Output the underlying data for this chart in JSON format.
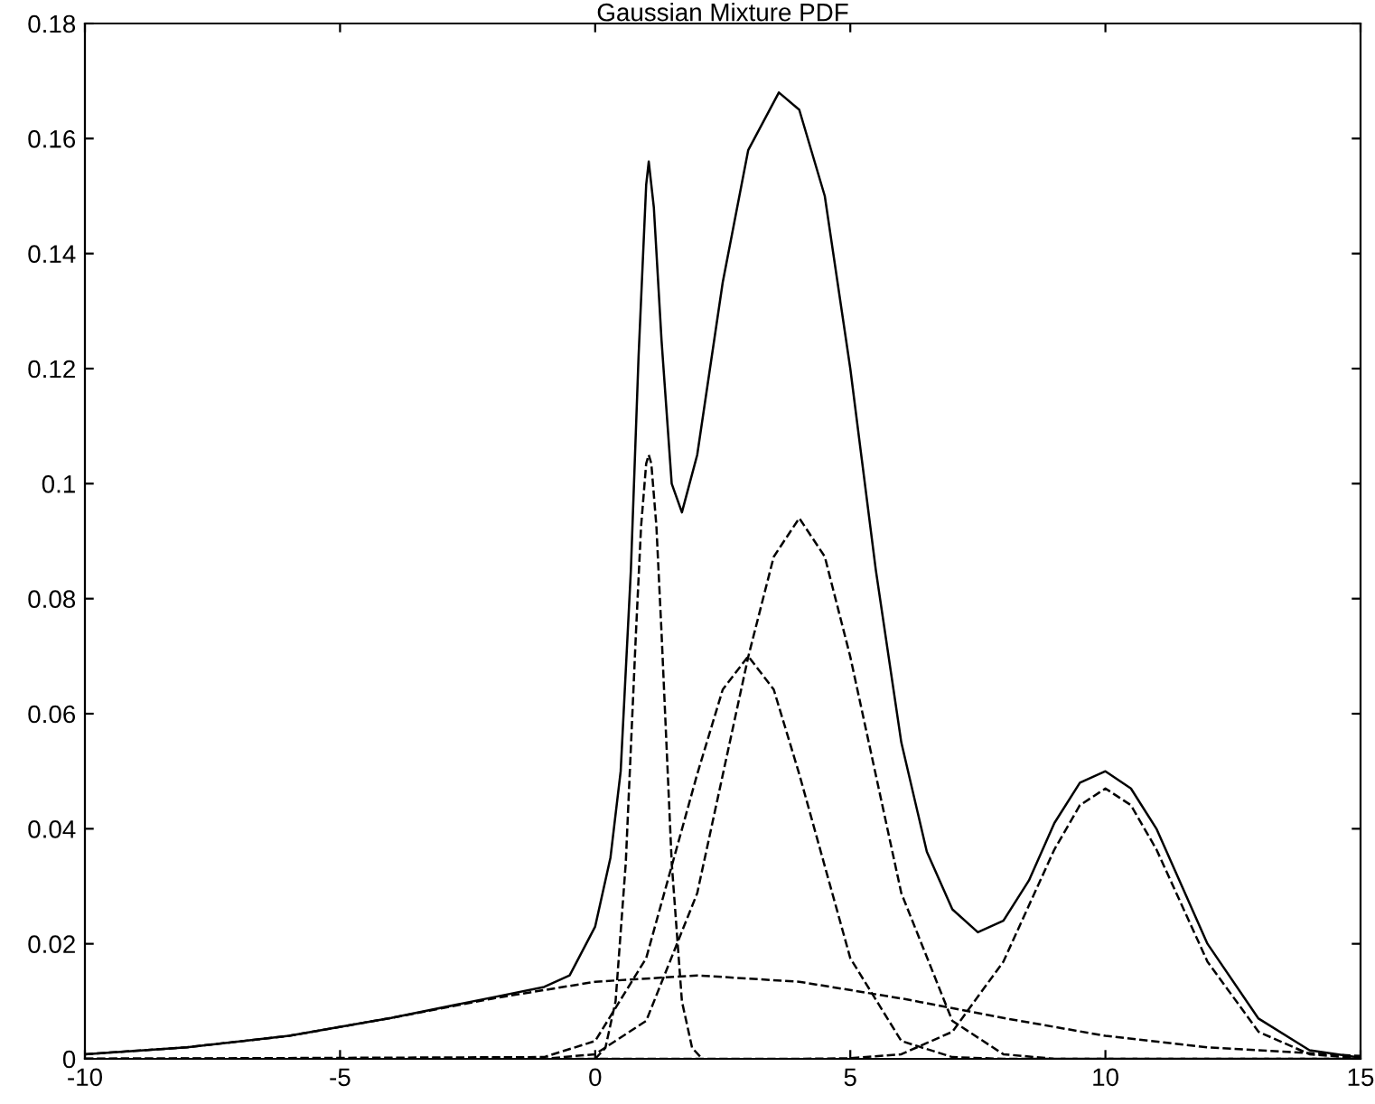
{
  "chart_data": {
    "type": "line",
    "title": "Gaussian Mixture PDF",
    "xlim": [
      -10,
      15
    ],
    "xticks": [
      -10,
      -5,
      0,
      5,
      10,
      15
    ],
    "ylim": [
      0,
      0.18
    ],
    "yticks": [
      0,
      0.02,
      0.04,
      0.06,
      0.08,
      0.1,
      0.12,
      0.14,
      0.16,
      0.18
    ],
    "grid": false,
    "legend": false,
    "marker": "none",
    "series": [
      {
        "color": "#000000",
        "line_style": "solid",
        "x": [
          -10,
          -8,
          -6,
          -4,
          -2,
          -1,
          -0.5,
          0,
          0.3,
          0.5,
          0.7,
          0.85,
          1.0,
          1.05,
          1.15,
          1.3,
          1.5,
          1.7,
          2.0,
          2.5,
          3,
          3.6,
          4,
          4.5,
          5,
          5.5,
          6,
          6.5,
          7,
          7.5,
          8,
          8.5,
          9,
          9.5,
          10,
          10.5,
          11,
          12,
          13,
          14,
          15
        ],
        "values": [
          0.0008,
          0.002,
          0.004,
          0.0071,
          0.0107,
          0.0125,
          0.0145,
          0.023,
          0.035,
          0.05,
          0.085,
          0.122,
          0.152,
          0.156,
          0.148,
          0.125,
          0.1,
          0.095,
          0.105,
          0.135,
          0.158,
          0.168,
          0.165,
          0.15,
          0.12,
          0.085,
          0.055,
          0.036,
          0.026,
          0.022,
          0.024,
          0.031,
          0.041,
          0.048,
          0.05,
          0.047,
          0.04,
          0.02,
          0.007,
          0.0015,
          0.0002
        ]
      },
      {
        "color": "#000000",
        "line_style": "dashed",
        "x": [
          0.0,
          0.2,
          0.4,
          0.6,
          0.8,
          0.9,
          1.0,
          1.05,
          1.1,
          1.2,
          1.3,
          1.5,
          1.7,
          1.9,
          2.1
        ],
        "values": [
          0,
          0.0019,
          0.01,
          0.0341,
          0.0742,
          0.0926,
          0.1035,
          0.105,
          0.1035,
          0.0926,
          0.0742,
          0.0341,
          0.01,
          0.0019,
          0
        ]
      },
      {
        "color": "#000000",
        "line_style": "dashed",
        "x": [
          -10,
          -1,
          0,
          1,
          2,
          2.5,
          3,
          3.5,
          4,
          5,
          6,
          7,
          8,
          15
        ],
        "values": [
          0,
          0.0003,
          0.0031,
          0.0175,
          0.0495,
          0.0642,
          0.07,
          0.0642,
          0.0495,
          0.0175,
          0.0031,
          0.0003,
          0,
          0
        ]
      },
      {
        "color": "#000000",
        "line_style": "dashed",
        "x": [
          -10,
          -1,
          0,
          1,
          2,
          3,
          3.5,
          4,
          4.5,
          5,
          6,
          7,
          8,
          9,
          15
        ],
        "values": [
          0,
          0,
          0.0008,
          0.0066,
          0.0288,
          0.0699,
          0.0873,
          0.094,
          0.0873,
          0.0699,
          0.0288,
          0.0066,
          0.0008,
          0,
          0
        ]
      },
      {
        "color": "#000000",
        "line_style": "dashed",
        "x": [
          -10,
          4,
          5,
          6,
          7,
          8,
          9,
          9.5,
          10,
          10.5,
          11,
          12,
          13,
          14,
          15
        ],
        "values": [
          0,
          0,
          0.0001,
          0.0008,
          0.0047,
          0.0169,
          0.0364,
          0.0441,
          0.047,
          0.0441,
          0.0364,
          0.0169,
          0.0047,
          0.0008,
          0.0001
        ]
      },
      {
        "color": "#000000",
        "line_style": "dashed",
        "x": [
          -10,
          -8,
          -6,
          -4,
          -2,
          0,
          2,
          4,
          6,
          8,
          10,
          12,
          15
        ],
        "values": [
          0.0008,
          0.002,
          0.004,
          0.0071,
          0.0105,
          0.0134,
          0.0145,
          0.0134,
          0.0105,
          0.0071,
          0.004,
          0.002,
          0.0005
        ]
      }
    ]
  }
}
